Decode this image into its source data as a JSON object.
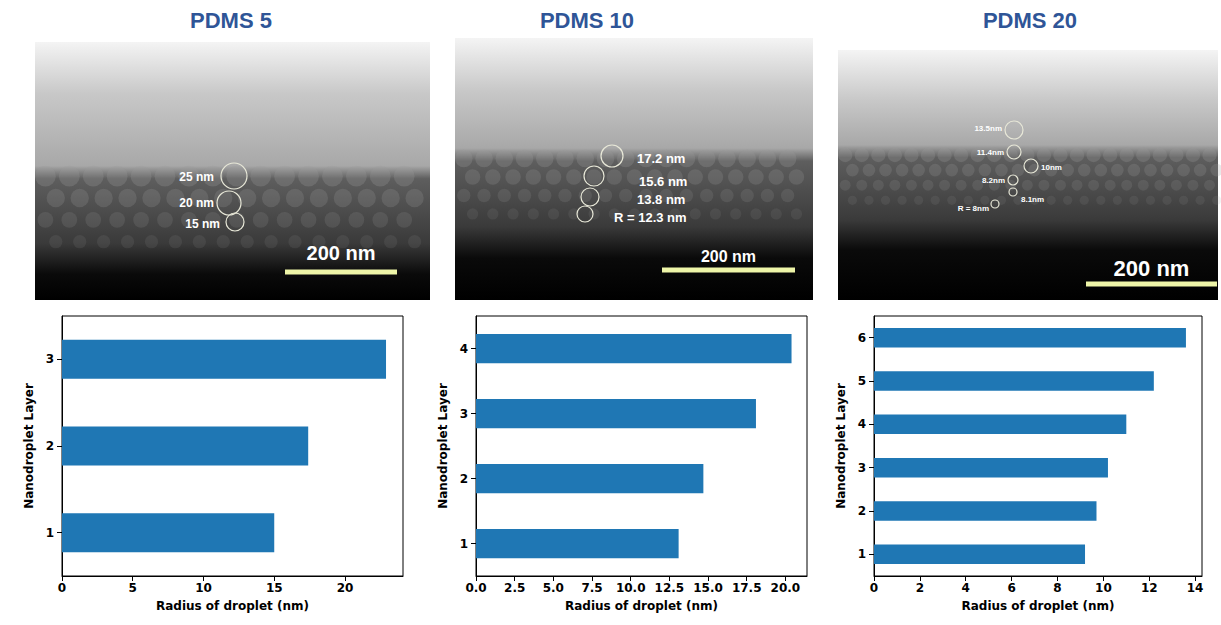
{
  "images": [
    {
      "labels": [
        "25 nm",
        "20 nm",
        "15 nm"
      ],
      "scale_bar": "200 nm"
    },
    {
      "labels": [
        "17.2 nm",
        "15.6 nm",
        "13.8 nm",
        "R = 12.3 nm"
      ],
      "scale_bar": "200 nm"
    },
    {
      "labels": [
        "13.5nm",
        "11.4nm",
        "10nm",
        "8.2nm",
        "8.1nm",
        "R = 8nm"
      ],
      "scale_bar": "200 nm"
    }
  ],
  "chart_data": [
    {
      "type": "bar",
      "orientation": "horizontal",
      "title": "PDMS 5",
      "xlabel": "Radius of droplet (nm)",
      "ylabel": "Nanodroplet Layer",
      "categories": [
        "1",
        "2",
        "3"
      ],
      "values": [
        15.0,
        17.4,
        22.9
      ],
      "color": "#1f77b4",
      "xlim": [
        0,
        24.1
      ],
      "xticks": [
        0,
        5,
        10,
        15,
        20
      ],
      "grid": false
    },
    {
      "type": "bar",
      "orientation": "horizontal",
      "title": "PDMS 10",
      "xlabel": "Radius of droplet (nm)",
      "ylabel": "Nanodroplet Layer",
      "categories": [
        "1",
        "2",
        "3",
        "4"
      ],
      "values": [
        13.1,
        14.7,
        18.1,
        20.4
      ],
      "color": "#1f77b4",
      "xlim": [
        0,
        21.4
      ],
      "xticks": [
        {
          "value": 0,
          "label": "0.0"
        },
        2.5,
        {
          "value": 5,
          "label": "5.0"
        },
        7.5,
        {
          "value": 10,
          "label": "10.0"
        },
        12.5,
        {
          "value": 15,
          "label": "15.0"
        },
        17.5,
        {
          "value": 20,
          "label": "20.0"
        }
      ],
      "grid": false
    },
    {
      "type": "bar",
      "orientation": "horizontal",
      "title": "PDMS 20",
      "xlabel": "Radius of droplet (nm)",
      "ylabel": "Nanodroplet Layer",
      "categories": [
        "1",
        "2",
        "3",
        "4",
        "5",
        "6"
      ],
      "values": [
        9.2,
        9.7,
        10.2,
        11.0,
        12.2,
        13.6
      ],
      "color": "#1f77b4",
      "xlim": [
        0,
        14.3
      ],
      "xticks": [
        0,
        2,
        4,
        6,
        8,
        10,
        12,
        14
      ],
      "grid": false
    }
  ]
}
